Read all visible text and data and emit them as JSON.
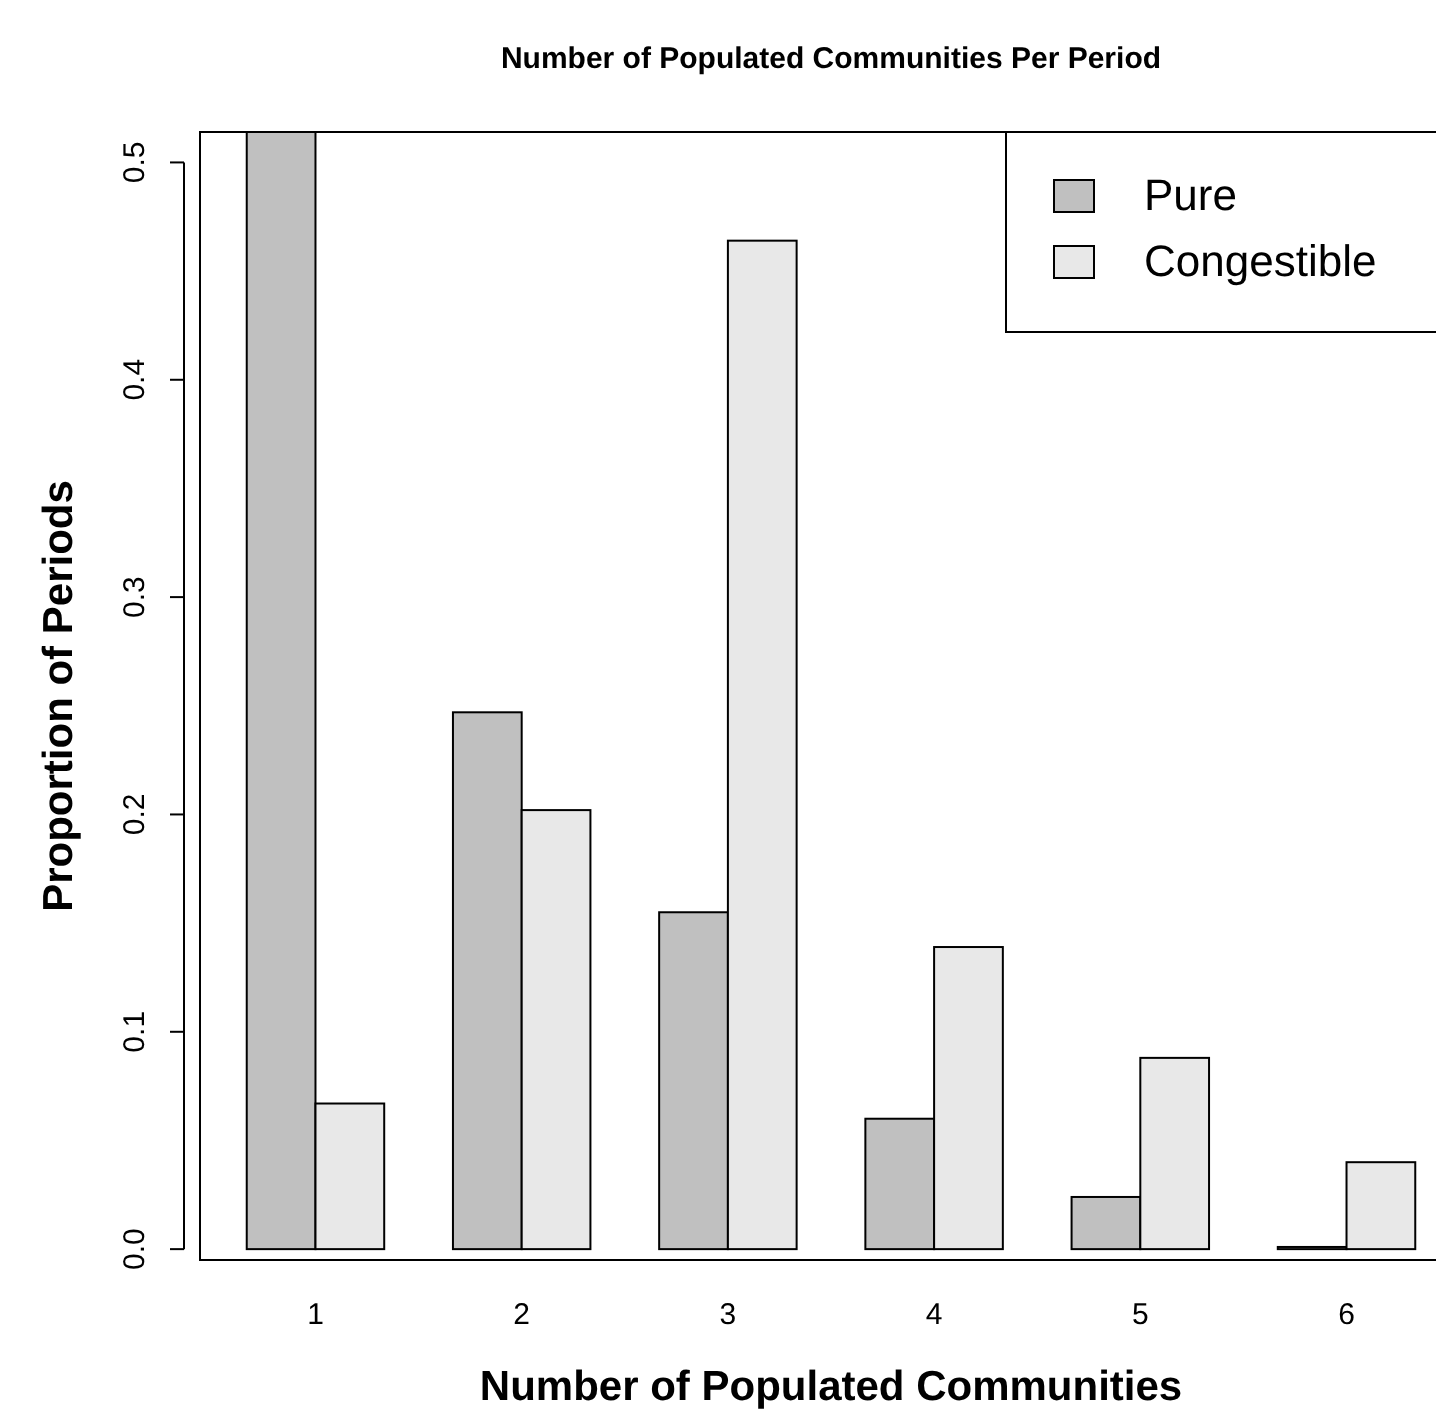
{
  "chart_data": {
    "type": "bar",
    "title": "Number of Populated Communities Per Period",
    "xlabel": "Number of Populated Communities",
    "ylabel": "Proportion of Periods",
    "categories": [
      "1",
      "2",
      "3",
      "4",
      "5",
      "6"
    ],
    "series": [
      {
        "name": "Pure",
        "color": "#c0c0c0",
        "values": [
          0.514,
          0.247,
          0.155,
          0.06,
          0.024,
          0.001
        ]
      },
      {
        "name": "Congestible",
        "color": "#e8e8e8",
        "values": [
          0.067,
          0.202,
          0.464,
          0.139,
          0.088,
          0.04
        ]
      }
    ],
    "ylim": [
      -0.005,
      0.514
    ],
    "yticks": [
      {
        "value": 0,
        "label": "0.0"
      },
      0.1,
      0.2,
      0.3,
      0.4,
      0.5
    ],
    "legend": "top right"
  }
}
